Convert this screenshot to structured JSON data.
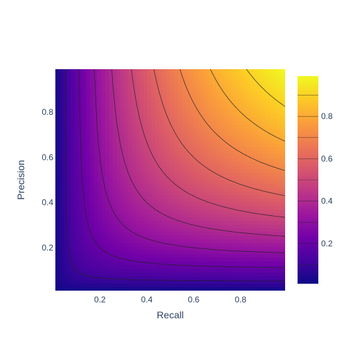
{
  "chart_data": {
    "type": "contour",
    "xlabel": "Recall",
    "ylabel": "Precision",
    "xlim": [
      0.01,
      0.99
    ],
    "ylim": [
      0.01,
      0.99
    ],
    "x_ticks": [
      0.2,
      0.4,
      0.6,
      0.8
    ],
    "x_tick_labels": [
      "0.2",
      "0.4",
      "0.6",
      "0.8"
    ],
    "y_ticks": [
      0.2,
      0.4,
      0.6,
      0.8
    ],
    "y_tick_labels": [
      "0.2",
      "0.4",
      "0.6",
      "0.8"
    ],
    "z_function": "f1 = 2*precision*recall/(precision+recall)",
    "zlim": [
      0.01,
      0.99
    ],
    "contour_levels": [
      0.1,
      0.2,
      0.3,
      0.4,
      0.5,
      0.6,
      0.7,
      0.8,
      0.9
    ],
    "colorscale": "plasma",
    "colorbar": {
      "ticks": [
        0.2,
        0.4,
        0.6,
        0.8
      ],
      "tick_labels": [
        "0.2",
        "0.4",
        "0.6",
        "0.8"
      ]
    },
    "grid": false,
    "colors": {
      "plasma": [
        "#0d0887",
        "#46039f",
        "#7201a8",
        "#9c179e",
        "#bd3786",
        "#d8576b",
        "#ed7953",
        "#fb9f3a",
        "#fdca26",
        "#f0f921"
      ],
      "contour_line": "#222222",
      "text": "#2a3f5f"
    }
  }
}
